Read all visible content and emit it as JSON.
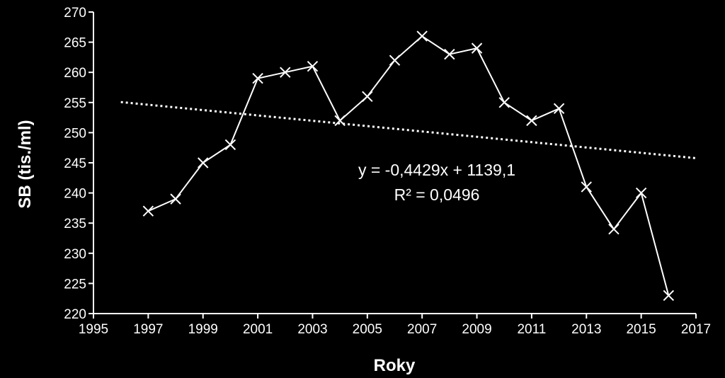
{
  "chart_data": {
    "type": "scatter",
    "title": "",
    "xlabel": "Roky",
    "ylabel": "SB (tis./ml)",
    "xlim": [
      1995,
      2017
    ],
    "ylim": [
      220,
      270
    ],
    "x_ticks": [
      "1995",
      "1997",
      "1999",
      "2001",
      "2003",
      "2005",
      "2007",
      "2009",
      "2011",
      "2013",
      "2015",
      "2017"
    ],
    "y_ticks": [
      "220",
      "225",
      "230",
      "235",
      "240",
      "245",
      "250",
      "255",
      "260",
      "265",
      "270"
    ],
    "series": [
      {
        "x": [
          1997,
          1998,
          1999,
          2000,
          2001,
          2002,
          2003,
          2004,
          2005,
          2006,
          2007,
          2008,
          2009,
          2010,
          2011,
          2012,
          2013,
          2014,
          2015,
          2016
        ],
        "values": [
          237,
          239,
          245,
          248,
          259,
          260,
          261,
          252,
          256,
          262,
          266,
          263,
          264,
          255,
          252,
          254,
          241,
          234,
          240,
          223
        ]
      }
    ],
    "trendline": {
      "slope": -0.4429,
      "intercept": 1139.1,
      "x_range": [
        1996,
        2017
      ],
      "equation": "y = -0,4429x + 1139,1",
      "r_squared": "R² = 0,0496"
    },
    "grid": false,
    "legend": "none",
    "colors": {
      "background": "#000000",
      "foreground": "#ffffff"
    }
  }
}
